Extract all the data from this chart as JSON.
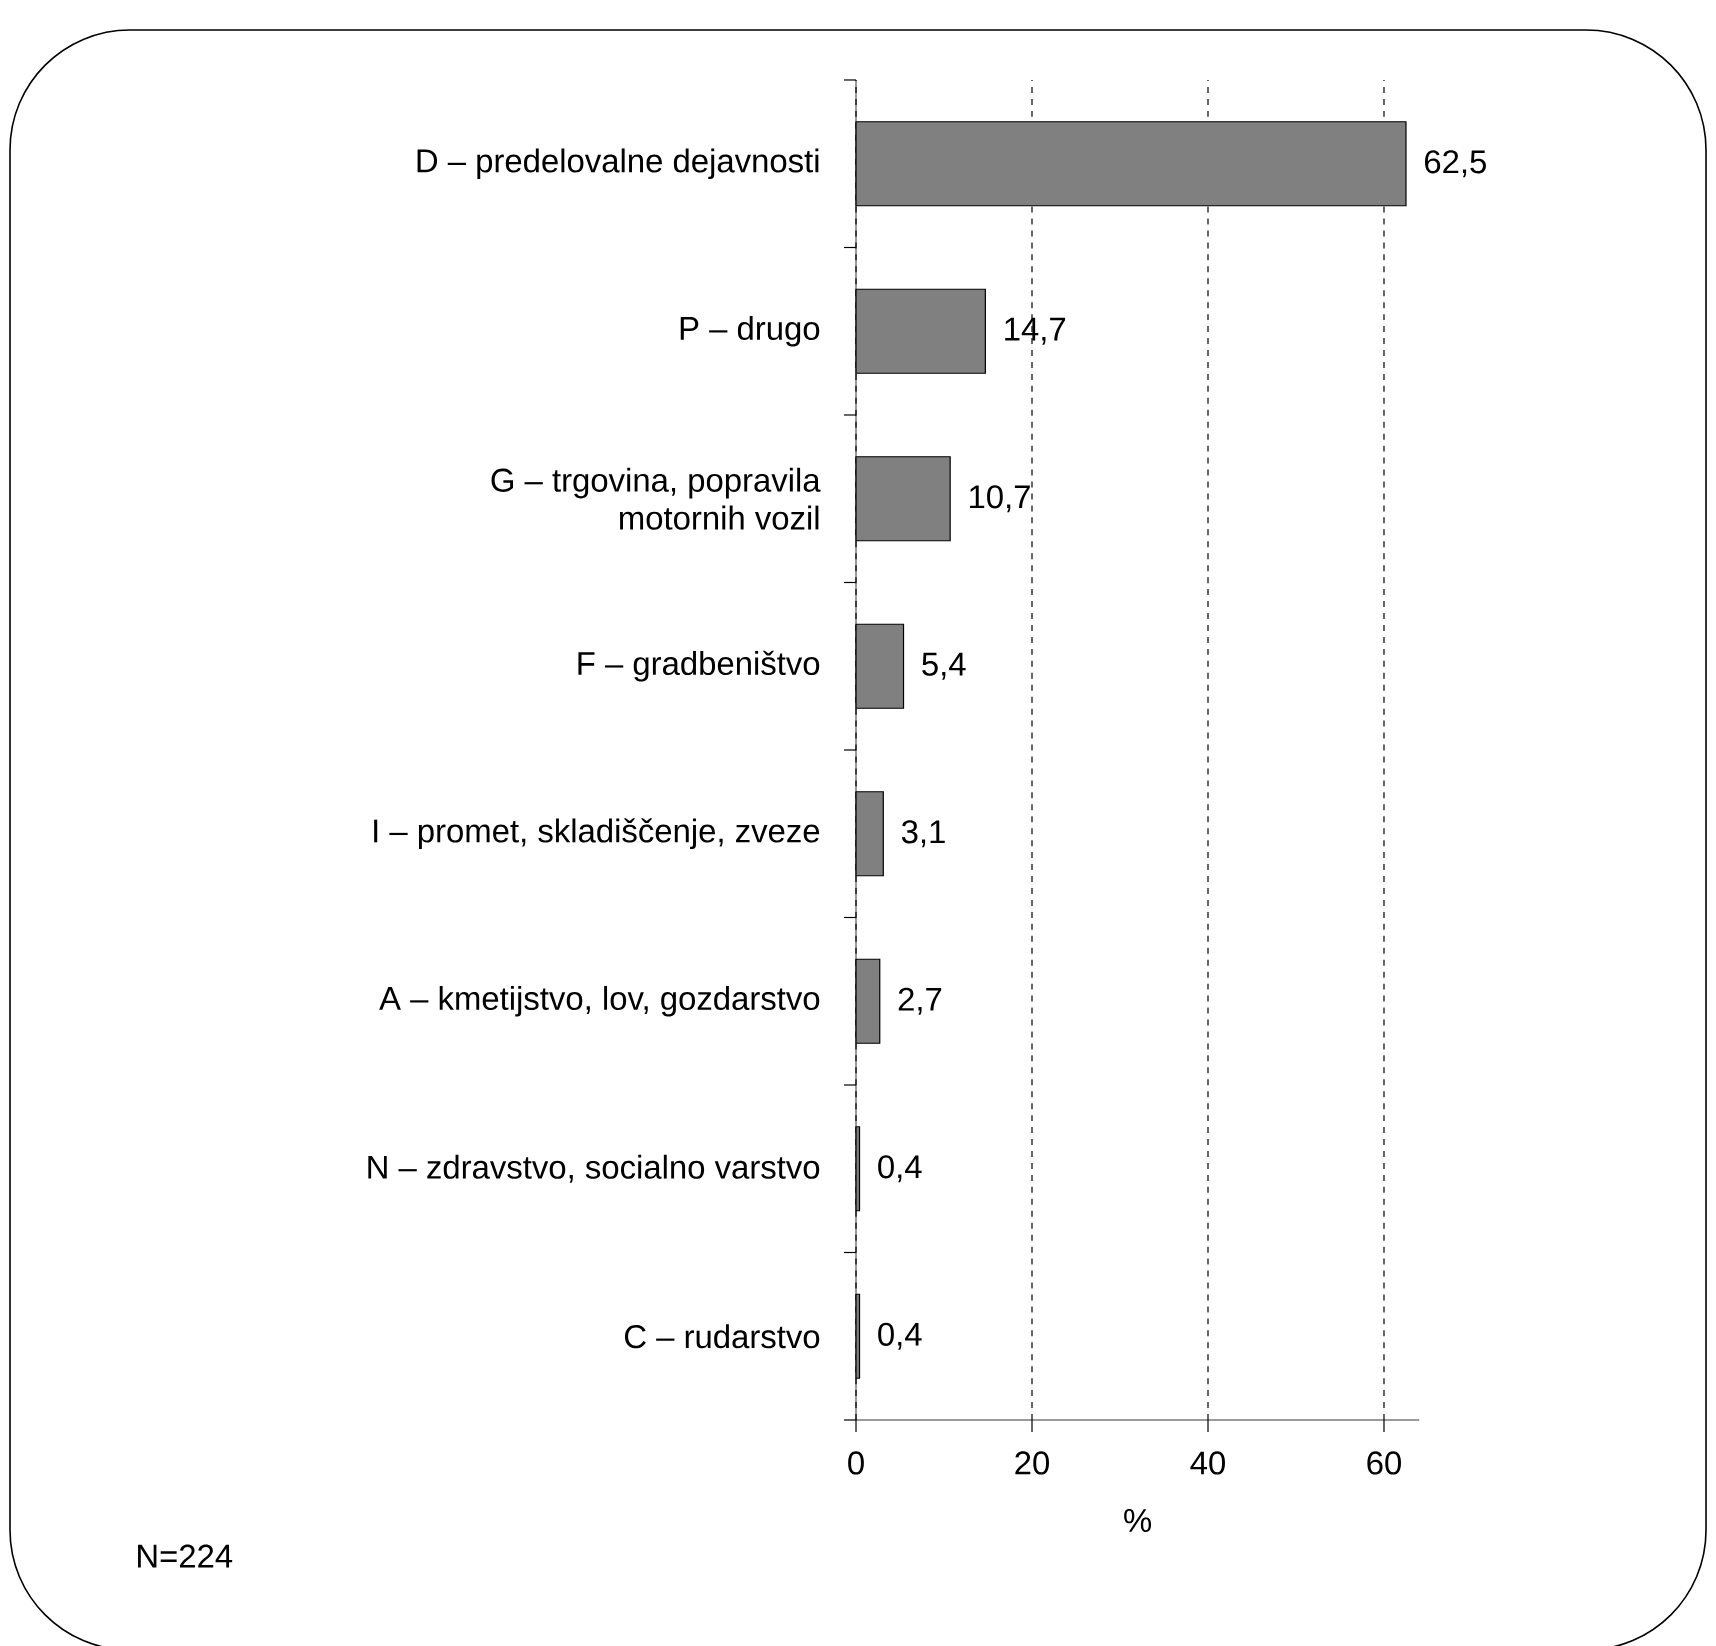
{
  "chart_data": {
    "type": "bar",
    "orientation": "horizontal",
    "categories": [
      "D – predelovalne dejavnosti",
      "P – drugo",
      "G – trgovina, popravila motornih vozil",
      "F – gradbeništvo",
      "I – promet, skladiščenje, zveze",
      "A – kmetijstvo, lov, gozdarstvo",
      "N – zdravstvo, socialno varstvo",
      "C – rudarstvo"
    ],
    "values": [
      62.5,
      14.7,
      10.7,
      5.4,
      3.1,
      2.7,
      0.4,
      0.4
    ],
    "value_labels": [
      "62,5",
      "14,7",
      "10,7",
      "5,4",
      "3,1",
      "2,7",
      "0,4",
      "0,4"
    ],
    "color": "#808080",
    "xlim": [
      0,
      64
    ],
    "xticks": [
      0,
      20,
      40,
      60
    ],
    "grid": "x",
    "xlabel": "%",
    "annotations": [
      "N=224"
    ]
  }
}
